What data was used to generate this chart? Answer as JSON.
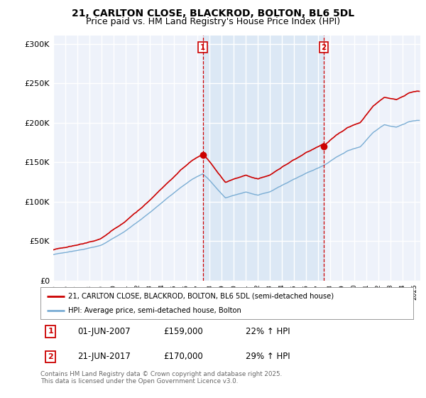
{
  "title1": "21, CARLTON CLOSE, BLACKROD, BOLTON, BL6 5DL",
  "title2": "Price paid vs. HM Land Registry's House Price Index (HPI)",
  "ylabel_ticks": [
    "£0",
    "£50K",
    "£100K",
    "£150K",
    "£200K",
    "£250K",
    "£300K"
  ],
  "ytick_values": [
    0,
    50000,
    100000,
    150000,
    200000,
    250000,
    300000
  ],
  "ylim": [
    0,
    310000
  ],
  "xlim_start": 1995.0,
  "xlim_end": 2025.5,
  "line1_color": "#cc0000",
  "line2_color": "#7aadd4",
  "shade_color": "#dce8f5",
  "vline_color": "#cc0000",
  "vline_style": "--",
  "sale1_x": 2007.42,
  "sale1_y": 159000,
  "sale2_x": 2017.47,
  "sale2_y": 170000,
  "legend_label1": "21, CARLTON CLOSE, BLACKROD, BOLTON, BL6 5DL (semi-detached house)",
  "legend_label2": "HPI: Average price, semi-detached house, Bolton",
  "table_row1": [
    "1",
    "01-JUN-2007",
    "£159,000",
    "22% ↑ HPI"
  ],
  "table_row2": [
    "2",
    "21-JUN-2017",
    "£170,000",
    "29% ↑ HPI"
  ],
  "footnote": "Contains HM Land Registry data © Crown copyright and database right 2025.\nThis data is licensed under the Open Government Licence v3.0.",
  "background_color": "#ffffff",
  "plot_bg_color": "#eef2fa",
  "grid_color": "#ffffff",
  "title_fontsize": 10,
  "subtitle_fontsize": 9,
  "tick_fontsize": 8
}
